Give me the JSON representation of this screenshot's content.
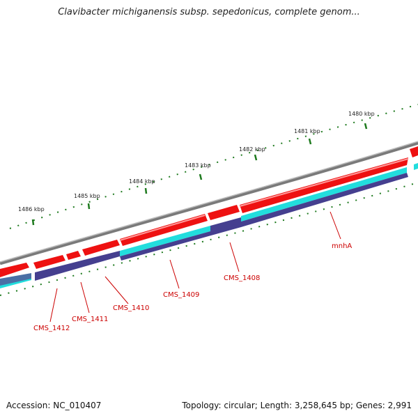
{
  "title": "Clavibacter michiganensis subsp. sepedonicus, complete genom...",
  "accession": "Accession: NC_010407",
  "summary": "Topology: circular; Length: 3,258,645 bp; Genes: 2,991",
  "colors": {
    "backbone": "#7a7a7a",
    "forward_gene": "#ee1111",
    "forward_gene_light": "#ff9a9a",
    "cds_track": "#22dddd",
    "feature_track": "#453f8f",
    "tick": "#1e7a1e",
    "label": "#cc0000"
  },
  "scale_labels": [
    "1480 kbp",
    "1481 kbp",
    "1482 kbp",
    "1483 kbp",
    "1484 kbp",
    "1485 kbp",
    "1486 kbp"
  ],
  "gene_labels": [
    "mnhA",
    "CMS_1408",
    "CMS_1409",
    "CMS_1410",
    "CMS_1411",
    "CMS_1412"
  ]
}
